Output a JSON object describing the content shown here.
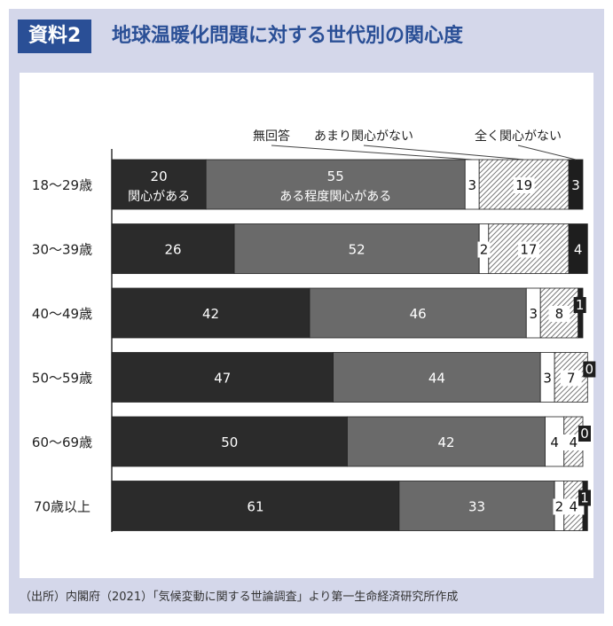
{
  "header": {
    "badge": "資料2",
    "title": "地球温暖化問題に対する世代別の関心度"
  },
  "source": "（出所）内閣府（2021）「気候変動に関する世論調査」より第一生命経済研究所作成",
  "chart_data": {
    "type": "bar",
    "orientation": "horizontal",
    "stacked": true,
    "categories": [
      "18〜29歳",
      "30〜39歳",
      "40〜49歳",
      "50〜59歳",
      "60〜69歳",
      "70歳以上"
    ],
    "series": [
      {
        "name": "関心がある",
        "values": [
          20,
          26,
          42,
          47,
          50,
          61
        ],
        "color": "#2b2b2b"
      },
      {
        "name": "ある程度関心がある",
        "values": [
          55,
          52,
          46,
          44,
          42,
          33
        ],
        "color": "#6a6a6a"
      },
      {
        "name": "無回答",
        "values": [
          3,
          2,
          3,
          3,
          4,
          2
        ],
        "color": "#ffffff"
      },
      {
        "name": "あまり関心がない",
        "values": [
          19,
          17,
          8,
          7,
          4,
          4
        ],
        "color": "hatch"
      },
      {
        "name": "全く関心がない",
        "values": [
          3,
          4,
          1,
          0,
          0,
          1
        ],
        "color": "#1e1e1e"
      }
    ],
    "legend_inline": [
      "無回答",
      "あまり関心がない",
      "全く関心がない"
    ],
    "first_bar_labels": [
      "関心がある",
      "ある程度関心がある"
    ],
    "xlim": [
      0,
      100
    ],
    "grid": false
  }
}
